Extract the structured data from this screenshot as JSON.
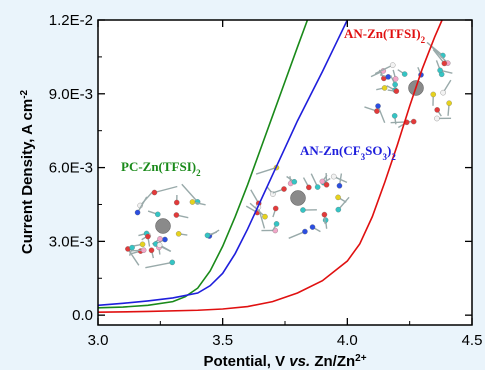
{
  "chart_data": {
    "type": "line",
    "xlabel": {
      "prefix": "Potential, V ",
      "italic": "vs.",
      "suffix": " Zn/Zn",
      "sup": "2+"
    },
    "ylabel": {
      "text": "Current Density, A cm",
      "sup": "-2"
    },
    "xlim": [
      3.0,
      4.5
    ],
    "ylim": [
      -0.0004,
      0.012
    ],
    "xticks": [
      {
        "value": 3.0,
        "label": "3.0"
      },
      {
        "value": 3.5,
        "label": "3.5"
      },
      {
        "value": 4.0,
        "label": "4.0"
      },
      {
        "value": 4.5,
        "label": "4.5"
      }
    ],
    "yticks": [
      {
        "value": 0.0,
        "label": "0.0"
      },
      {
        "value": 0.003,
        "label": "3.0E-3"
      },
      {
        "value": 0.006,
        "label": "6.0E-3"
      },
      {
        "value": 0.009,
        "label": "9.0E-3"
      },
      {
        "value": 0.012,
        "label": "1.2E-2"
      }
    ],
    "grid": false,
    "legend": "none",
    "series": [
      {
        "name": "PC-Zn(TFSI)2",
        "color": "#1a8a1a",
        "points": [
          [
            3.0,
            0.0003
          ],
          [
            3.1,
            0.00033
          ],
          [
            3.2,
            0.0004
          ],
          [
            3.3,
            0.00055
          ],
          [
            3.35,
            0.00075
          ],
          [
            3.4,
            0.0011
          ],
          [
            3.45,
            0.0018
          ],
          [
            3.5,
            0.0028
          ],
          [
            3.55,
            0.004
          ],
          [
            3.6,
            0.0053
          ],
          [
            3.65,
            0.0067
          ],
          [
            3.7,
            0.0081
          ],
          [
            3.75,
            0.0095
          ],
          [
            3.8,
            0.0109
          ],
          [
            3.84,
            0.012
          ]
        ]
      },
      {
        "name": "AN-Zn(CF3SO3)2",
        "color": "#1f1fdc",
        "points": [
          [
            3.0,
            0.0004
          ],
          [
            3.1,
            0.00048
          ],
          [
            3.2,
            0.00058
          ],
          [
            3.3,
            0.0007
          ],
          [
            3.4,
            0.0009
          ],
          [
            3.45,
            0.0012
          ],
          [
            3.5,
            0.0017
          ],
          [
            3.55,
            0.0025
          ],
          [
            3.6,
            0.0035
          ],
          [
            3.65,
            0.0046
          ],
          [
            3.7,
            0.0057
          ],
          [
            3.75,
            0.0068
          ],
          [
            3.8,
            0.0079
          ],
          [
            3.85,
            0.0089
          ],
          [
            3.9,
            0.0099
          ],
          [
            3.95,
            0.01095
          ],
          [
            4.0,
            0.012
          ]
        ]
      },
      {
        "name": "AN-Zn(TFSI)2",
        "color": "#e01010",
        "points": [
          [
            3.0,
            0.00012
          ],
          [
            3.2,
            0.00015
          ],
          [
            3.4,
            0.0002
          ],
          [
            3.5,
            0.00025
          ],
          [
            3.6,
            0.00035
          ],
          [
            3.7,
            0.00055
          ],
          [
            3.8,
            0.0009
          ],
          [
            3.9,
            0.0014
          ],
          [
            4.0,
            0.0022
          ],
          [
            4.05,
            0.0029
          ],
          [
            4.1,
            0.004
          ],
          [
            4.15,
            0.0054
          ],
          [
            4.2,
            0.0069
          ],
          [
            4.25,
            0.0085
          ],
          [
            4.3,
            0.01
          ],
          [
            4.35,
            0.0113
          ],
          [
            4.38,
            0.012
          ]
        ]
      }
    ],
    "annotations": [
      {
        "id": "pc",
        "color": "#1a8a1a",
        "parts": [
          {
            "t": "PC-Zn(TFSI)"
          },
          {
            "t": "2",
            "sub": true
          }
        ]
      },
      {
        "id": "an-cf3",
        "color": "#1f1fdc",
        "parts": [
          {
            "t": "AN-Zn(CF"
          },
          {
            "t": "3",
            "sub": true
          },
          {
            "t": "SO"
          },
          {
            "t": "3",
            "sub": true
          },
          {
            "t": ")"
          },
          {
            "t": "2",
            "sub": true
          }
        ]
      },
      {
        "id": "an-tfsi",
        "color": "#e01010",
        "parts": [
          {
            "t": "AN-Zn(TFSI)"
          },
          {
            "t": "2",
            "sub": true
          }
        ]
      }
    ]
  },
  "colors": {
    "background": "#eaf4fb",
    "plot_area": "#ffffff",
    "zn_atom": "#8a8a8a",
    "carbon": "#35c4c4",
    "oxygen": "#e23a3a",
    "sulfur": "#e6d21e",
    "nitrogen": "#2b4ee0",
    "hydrogen": "#f2f2f2",
    "fluorine": "#f2a6c8"
  }
}
